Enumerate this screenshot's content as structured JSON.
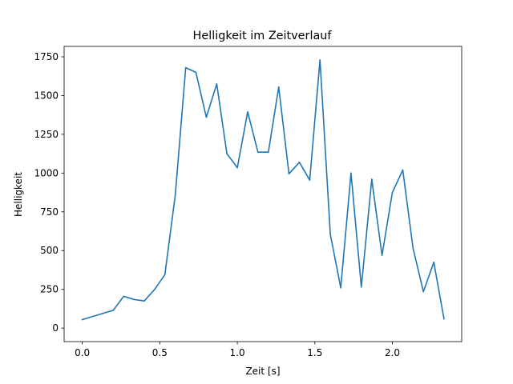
{
  "chart_data": {
    "type": "line",
    "title": "Helligkeit im Zeitverlauf",
    "xlabel": "Zeit [s]",
    "ylabel": "Helligkeit",
    "xlim": [
      -0.117,
      2.447
    ],
    "ylim": [
      -87,
      1817
    ],
    "x_ticks": [
      0.0,
      0.5,
      1.0,
      1.5,
      2.0
    ],
    "x_tick_labels": [
      "0.0",
      "0.5",
      "1.0",
      "1.5",
      "2.0"
    ],
    "y_ticks": [
      0,
      250,
      500,
      750,
      1000,
      1250,
      1500,
      1750
    ],
    "y_tick_labels": [
      "0",
      "250",
      "500",
      "750",
      "1000",
      "1250",
      "1500",
      "1750"
    ],
    "grid": false,
    "line_color": "#1f77b4",
    "series": [
      {
        "x": [
          0.0,
          0.067,
          0.133,
          0.2,
          0.267,
          0.333,
          0.4,
          0.467,
          0.533,
          0.6,
          0.667,
          0.733,
          0.8,
          0.867,
          0.933,
          1.0,
          1.067,
          1.133,
          1.2,
          1.267,
          1.333,
          1.4,
          1.467,
          1.533,
          1.6,
          1.667,
          1.733,
          1.8,
          1.867,
          1.933,
          2.0,
          2.067,
          2.133,
          2.2,
          2.267,
          2.333
        ],
        "y": [
          55,
          75,
          95,
          115,
          205,
          185,
          175,
          250,
          345,
          860,
          1680,
          1650,
          1360,
          1575,
          1125,
          1035,
          1395,
          1135,
          1135,
          1555,
          995,
          1070,
          955,
          1730,
          605,
          260,
          1000,
          265,
          960,
          470,
          875,
          1020,
          515,
          235,
          425,
          60
        ]
      }
    ]
  }
}
